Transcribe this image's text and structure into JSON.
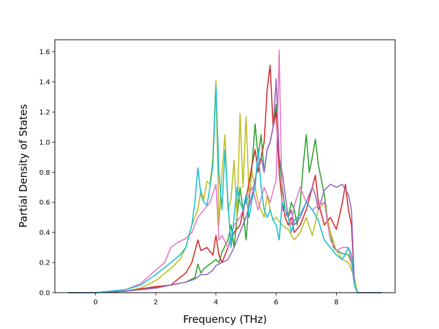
{
  "chart_data": {
    "type": "line",
    "xlabel": "Frequency (THz)",
    "ylabel": "Partial Density of States",
    "xlim": [
      -1.35,
      9.95
    ],
    "ylim": [
      0.0,
      1.68
    ],
    "x_ticks": [
      "0",
      "2",
      "4",
      "6",
      "8"
    ],
    "y_ticks": [
      "0.0",
      "0.2",
      "0.4",
      "0.6",
      "0.8",
      "1.0",
      "1.2",
      "1.4",
      "1.6"
    ],
    "grid": false,
    "legend": "none",
    "series": [
      {
        "color": "#2ca02c",
        "points": [
          [
            -0.9,
            0
          ],
          [
            0,
            0
          ],
          [
            1,
            0.01
          ],
          [
            2,
            0.035
          ],
          [
            2.5,
            0.05
          ],
          [
            3,
            0.07
          ],
          [
            3.3,
            0.1
          ],
          [
            3.4,
            0.19
          ],
          [
            3.5,
            0.13
          ],
          [
            3.6,
            0.16
          ],
          [
            3.8,
            0.19
          ],
          [
            4,
            0.22
          ],
          [
            4.1,
            0.2
          ],
          [
            4.2,
            0.27
          ],
          [
            4.4,
            0.35
          ],
          [
            4.5,
            0.45
          ],
          [
            4.6,
            0.3
          ],
          [
            4.7,
            0.5
          ],
          [
            4.8,
            0.7
          ],
          [
            4.9,
            0.55
          ],
          [
            5,
            0.35
          ],
          [
            5.1,
            0.6
          ],
          [
            5.2,
            0.85
          ],
          [
            5.3,
            1.12
          ],
          [
            5.4,
            0.9
          ],
          [
            5.5,
            1.05
          ],
          [
            5.6,
            0.8
          ],
          [
            5.7,
            0.95
          ],
          [
            5.8,
            1.0
          ],
          [
            5.9,
            1.1
          ],
          [
            6,
            1.25
          ],
          [
            6.1,
            0.9
          ],
          [
            6.2,
            0.7
          ],
          [
            6.3,
            0.55
          ],
          [
            6.4,
            0.5
          ],
          [
            6.5,
            0.6
          ],
          [
            6.6,
            0.55
          ],
          [
            6.7,
            0.45
          ],
          [
            6.8,
            0.6
          ],
          [
            6.9,
            0.85
          ],
          [
            7,
            1.05
          ],
          [
            7.1,
            0.8
          ],
          [
            7.2,
            0.9
          ],
          [
            7.3,
            1.02
          ],
          [
            7.4,
            0.85
          ],
          [
            7.5,
            0.75
          ],
          [
            7.6,
            0.65
          ],
          [
            7.7,
            0.5
          ],
          [
            7.8,
            0.4
          ],
          [
            7.9,
            0.3
          ],
          [
            8,
            0.28
          ],
          [
            8.2,
            0.26
          ],
          [
            8.4,
            0.25
          ],
          [
            8.5,
            0.2
          ],
          [
            8.6,
            0.05
          ],
          [
            8.7,
            0
          ],
          [
            9.5,
            0
          ]
        ]
      },
      {
        "color": "#bcbd22",
        "points": [
          [
            -0.9,
            0
          ],
          [
            0,
            0
          ],
          [
            1,
            0.01
          ],
          [
            1.5,
            0.03
          ],
          [
            2,
            0.08
          ],
          [
            2.5,
            0.16
          ],
          [
            2.8,
            0.22
          ],
          [
            3,
            0.3
          ],
          [
            3.2,
            0.45
          ],
          [
            3.4,
            0.55
          ],
          [
            3.5,
            0.68
          ],
          [
            3.6,
            0.62
          ],
          [
            3.7,
            0.74
          ],
          [
            3.8,
            0.72
          ],
          [
            3.9,
            0.9
          ],
          [
            4,
            1.41
          ],
          [
            4.1,
            0.45
          ],
          [
            4.2,
            0.8
          ],
          [
            4.3,
            1.05
          ],
          [
            4.4,
            0.55
          ],
          [
            4.5,
            0.62
          ],
          [
            4.6,
            0.88
          ],
          [
            4.7,
            0.5
          ],
          [
            4.8,
            1.19
          ],
          [
            4.9,
            0.7
          ],
          [
            5,
            1.17
          ],
          [
            5.1,
            0.65
          ],
          [
            5.2,
            0.8
          ],
          [
            5.3,
            0.7
          ],
          [
            5.4,
            0.6
          ],
          [
            5.5,
            0.55
          ],
          [
            5.6,
            0.5
          ],
          [
            5.7,
            0.65
          ],
          [
            5.8,
            0.55
          ],
          [
            5.9,
            0.48
          ],
          [
            6,
            0.5
          ],
          [
            6.2,
            0.45
          ],
          [
            6.4,
            0.42
          ],
          [
            6.6,
            0.35
          ],
          [
            6.8,
            0.4
          ],
          [
            7,
            0.5
          ],
          [
            7.2,
            0.38
          ],
          [
            7.4,
            0.55
          ],
          [
            7.6,
            0.6
          ],
          [
            7.8,
            0.4
          ],
          [
            8,
            0.28
          ],
          [
            8.2,
            0.22
          ],
          [
            8.4,
            0.2
          ],
          [
            8.6,
            0.1
          ],
          [
            8.7,
            0
          ],
          [
            9.5,
            0
          ]
        ]
      },
      {
        "color": "#d62728",
        "points": [
          [
            -0.9,
            0
          ],
          [
            0,
            0
          ],
          [
            1,
            0.01
          ],
          [
            2,
            0.04
          ],
          [
            2.5,
            0.05
          ],
          [
            2.8,
            0.1
          ],
          [
            3,
            0.13
          ],
          [
            3.2,
            0.2
          ],
          [
            3.4,
            0.35
          ],
          [
            3.5,
            0.28
          ],
          [
            3.7,
            0.3
          ],
          [
            3.9,
            0.25
          ],
          [
            4,
            0.38
          ],
          [
            4.1,
            0.25
          ],
          [
            4.2,
            0.2
          ],
          [
            4.4,
            0.3
          ],
          [
            4.6,
            0.4
          ],
          [
            4.8,
            0.45
          ],
          [
            5,
            0.62
          ],
          [
            5.2,
            0.85
          ],
          [
            5.3,
            0.95
          ],
          [
            5.4,
            0.8
          ],
          [
            5.5,
            0.9
          ],
          [
            5.6,
            1.0
          ],
          [
            5.7,
            1.35
          ],
          [
            5.8,
            1.51
          ],
          [
            5.9,
            1.1
          ],
          [
            6,
            1.2
          ],
          [
            6.1,
            0.8
          ],
          [
            6.2,
            0.6
          ],
          [
            6.3,
            0.5
          ],
          [
            6.4,
            0.45
          ],
          [
            6.5,
            0.5
          ],
          [
            6.6,
            0.4
          ],
          [
            6.8,
            0.45
          ],
          [
            7,
            0.55
          ],
          [
            7.2,
            0.7
          ],
          [
            7.3,
            0.78
          ],
          [
            7.4,
            0.6
          ],
          [
            7.6,
            0.45
          ],
          [
            7.8,
            0.5
          ],
          [
            8,
            0.42
          ],
          [
            8.2,
            0.6
          ],
          [
            8.3,
            0.72
          ],
          [
            8.4,
            0.55
          ],
          [
            8.5,
            0.45
          ],
          [
            8.6,
            0.05
          ],
          [
            8.7,
            0
          ],
          [
            9.5,
            0
          ]
        ]
      },
      {
        "color": "#9467bd",
        "points": [
          [
            -0.9,
            0
          ],
          [
            0,
            0
          ],
          [
            1,
            0.01
          ],
          [
            2,
            0.03
          ],
          [
            2.5,
            0.05
          ],
          [
            3,
            0.07
          ],
          [
            3.3,
            0.09
          ],
          [
            3.5,
            0.12
          ],
          [
            3.7,
            0.12
          ],
          [
            3.9,
            0.15
          ],
          [
            4,
            0.18
          ],
          [
            4.2,
            0.2
          ],
          [
            4.4,
            0.22
          ],
          [
            4.6,
            0.3
          ],
          [
            4.8,
            0.4
          ],
          [
            5,
            0.5
          ],
          [
            5.2,
            0.65
          ],
          [
            5.4,
            0.85
          ],
          [
            5.5,
            0.9
          ],
          [
            5.6,
            0.8
          ],
          [
            5.7,
            0.95
          ],
          [
            5.8,
            1.0
          ],
          [
            5.9,
            1.1
          ],
          [
            6,
            1.42
          ],
          [
            6.1,
            0.9
          ],
          [
            6.2,
            0.8
          ],
          [
            6.3,
            0.65
          ],
          [
            6.4,
            0.5
          ],
          [
            6.5,
            0.55
          ],
          [
            6.6,
            0.45
          ],
          [
            6.8,
            0.5
          ],
          [
            7,
            0.6
          ],
          [
            7.2,
            0.7
          ],
          [
            7.3,
            0.65
          ],
          [
            7.4,
            0.55
          ],
          [
            7.6,
            0.68
          ],
          [
            7.8,
            0.72
          ],
          [
            8,
            0.7
          ],
          [
            8.2,
            0.72
          ],
          [
            8.4,
            0.65
          ],
          [
            8.5,
            0.55
          ],
          [
            8.6,
            0.05
          ],
          [
            8.7,
            0
          ],
          [
            9.5,
            0
          ]
        ]
      },
      {
        "color": "#e377c2",
        "points": [
          [
            -0.9,
            0
          ],
          [
            0,
            0
          ],
          [
            1,
            0.02
          ],
          [
            1.5,
            0.06
          ],
          [
            2,
            0.15
          ],
          [
            2.3,
            0.2
          ],
          [
            2.5,
            0.3
          ],
          [
            2.7,
            0.33
          ],
          [
            3,
            0.36
          ],
          [
            3.2,
            0.4
          ],
          [
            3.4,
            0.5
          ],
          [
            3.6,
            0.55
          ],
          [
            3.8,
            0.6
          ],
          [
            4,
            0.72
          ],
          [
            4.1,
            0.35
          ],
          [
            4.2,
            0.38
          ],
          [
            4.4,
            0.3
          ],
          [
            4.6,
            0.45
          ],
          [
            4.8,
            0.5
          ],
          [
            5,
            0.6
          ],
          [
            5.2,
            0.7
          ],
          [
            5.4,
            0.55
          ],
          [
            5.6,
            0.7
          ],
          [
            5.8,
            0.6
          ],
          [
            6,
            0.75
          ],
          [
            6.1,
            1.61
          ],
          [
            6.2,
            0.55
          ],
          [
            6.4,
            0.5
          ],
          [
            6.5,
            0.45
          ],
          [
            6.6,
            0.58
          ],
          [
            6.8,
            0.7
          ],
          [
            7,
            0.6
          ],
          [
            7.2,
            0.55
          ],
          [
            7.4,
            0.58
          ],
          [
            7.6,
            0.6
          ],
          [
            7.8,
            0.35
          ],
          [
            8,
            0.28
          ],
          [
            8.2,
            0.3
          ],
          [
            8.4,
            0.3
          ],
          [
            8.5,
            0.2
          ],
          [
            8.6,
            0.05
          ],
          [
            8.7,
            0
          ],
          [
            9.5,
            0
          ]
        ]
      },
      {
        "color": "#17becf",
        "points": [
          [
            -0.9,
            0
          ],
          [
            0,
            0
          ],
          [
            1,
            0.02
          ],
          [
            1.5,
            0.05
          ],
          [
            2,
            0.12
          ],
          [
            2.5,
            0.2
          ],
          [
            2.8,
            0.25
          ],
          [
            3,
            0.3
          ],
          [
            3.2,
            0.45
          ],
          [
            3.3,
            0.6
          ],
          [
            3.4,
            0.83
          ],
          [
            3.5,
            0.65
          ],
          [
            3.6,
            0.6
          ],
          [
            3.7,
            0.58
          ],
          [
            3.8,
            0.7
          ],
          [
            3.9,
            0.85
          ],
          [
            4,
            1.37
          ],
          [
            4.1,
            0.8
          ],
          [
            4.2,
            0.55
          ],
          [
            4.3,
            0.95
          ],
          [
            4.4,
            0.6
          ],
          [
            4.5,
            0.3
          ],
          [
            4.6,
            0.5
          ],
          [
            4.7,
            0.7
          ],
          [
            4.8,
            0.6
          ],
          [
            4.9,
            0.55
          ],
          [
            5,
            0.65
          ],
          [
            5.1,
            0.5
          ],
          [
            5.2,
            0.62
          ],
          [
            5.3,
            0.7
          ],
          [
            5.4,
            0.95
          ],
          [
            5.5,
            0.7
          ],
          [
            5.6,
            0.55
          ],
          [
            5.7,
            0.5
          ],
          [
            5.8,
            0.55
          ],
          [
            5.9,
            0.48
          ],
          [
            6,
            0.45
          ],
          [
            6.1,
            0.35
          ],
          [
            6.2,
            0.6
          ],
          [
            6.4,
            0.5
          ],
          [
            6.5,
            0.4
          ],
          [
            6.6,
            0.48
          ],
          [
            6.8,
            0.52
          ],
          [
            7,
            0.6
          ],
          [
            7.2,
            0.55
          ],
          [
            7.4,
            0.48
          ],
          [
            7.6,
            0.35
          ],
          [
            7.8,
            0.3
          ],
          [
            8,
            0.25
          ],
          [
            8.2,
            0.22
          ],
          [
            8.4,
            0.3
          ],
          [
            8.5,
            0.25
          ],
          [
            8.6,
            0.05
          ],
          [
            8.7,
            0
          ],
          [
            9.5,
            0
          ]
        ]
      }
    ]
  }
}
